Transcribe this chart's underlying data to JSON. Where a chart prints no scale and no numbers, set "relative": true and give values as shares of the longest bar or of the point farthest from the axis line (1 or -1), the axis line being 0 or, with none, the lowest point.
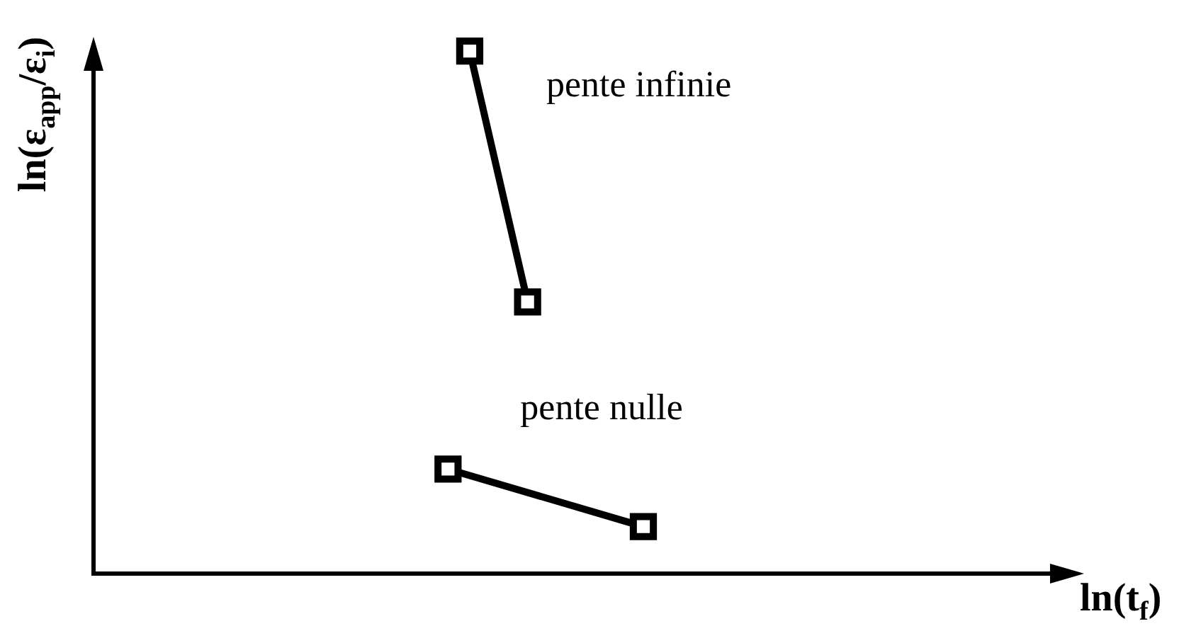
{
  "chart_data": {
    "type": "line",
    "xlabel": "ln(t$_{f}$)",
    "ylabel": "ln(ε$_{app}$/ε$_{i}$)",
    "relative": true,
    "marker": "square",
    "line_style": "solid",
    "categories": [
      null,
      null,
      null,
      null,
      null,
      null,
      null,
      null,
      null,
      null,
      null,
      null,
      null,
      null,
      null,
      null,
      null,
      null,
      null,
      null,
      null,
      null,
      null,
      null,
      null,
      null,
      null,
      null,
      null,
      null,
      null,
      null,
      null,
      null,
      null,
      null,
      null,
      null,
      null,
      null,
      null,
      null,
      null,
      null,
      null,
      null,
      null,
      null,
      null,
      null,
      null,
      null,
      null,
      null,
      null,
      null,
      null,
      null,
      null,
      null,
      null,
      null,
      null,
      null,
      null,
      null,
      null,
      null,
      null,
      null,
      null,
      null,
      null,
      null,
      null,
      null,
      null,
      null,
      null,
      null,
      null,
      null,
      null,
      null,
      null,
      null,
      null,
      null,
      null,
      null,
      null,
      null,
      null,
      null,
      null,
      null,
      null,
      null,
      null,
      null,
      null,
      null,
      null,
      null,
      null,
      null,
      null,
      null,
      null,
      null,
      null,
      null,
      null,
      null,
      null,
      null,
      null,
      null,
      null,
      null,
      null,
      null,
      null,
      null,
      null,
      null,
      null,
      null,
      null,
      null,
      null,
      null,
      null,
      null
    ],
    "series": [
      {
        "name": "pente infinie",
        "color": "#000000",
        "values": [
          null,
          null,
          null,
          null,
          null,
          null,
          null,
          null,
          null,
          null,
          null,
          null,
          null,
          null,
          null,
          null,
          null,
          null,
          null,
          null,
          null,
          null,
          null,
          null,
          null,
          null,
          null,
          null,
          null,
          null,
          null,
          null,
          null,
          null,
          null,
          null,
          null,
          null,
          null,
          null,
          null,
          null,
          null,
          null,
          null,
          null,
          null,
          null,
          null,
          null,
          null,
          null,
          1,
          null,
          null,
          null,
          null,
          null,
          null,
          null,
          0.52,
          null,
          null,
          null,
          null,
          null,
          null,
          null,
          null,
          null,
          null,
          null,
          null,
          null,
          null,
          null,
          null,
          null,
          null,
          null,
          null,
          null,
          null,
          null,
          null,
          null,
          null,
          null,
          null,
          null,
          null,
          null,
          null,
          null,
          null,
          null,
          null,
          null,
          null,
          null,
          null,
          null,
          null,
          null,
          null,
          null,
          null,
          null,
          null,
          null,
          null,
          null,
          null,
          null,
          null,
          null,
          null,
          null,
          null,
          null,
          null,
          null,
          null,
          null,
          null,
          null,
          null,
          null,
          null,
          null,
          null,
          null,
          null,
          null
        ]
      },
      {
        "name": "pente nulle",
        "color": "#000000",
        "values": [
          null,
          null,
          null,
          null,
          null,
          null,
          null,
          null,
          null,
          null,
          null,
          null,
          null,
          null,
          null,
          null,
          null,
          null,
          null,
          null,
          null,
          null,
          null,
          null,
          null,
          null,
          null,
          null,
          null,
          null,
          null,
          null,
          null,
          null,
          null,
          null,
          null,
          null,
          null,
          null,
          null,
          null,
          null,
          null,
          null,
          null,
          null,
          null,
          null,
          0.2,
          null,
          null,
          null,
          null,
          null,
          null,
          null,
          null,
          null,
          null,
          null,
          null,
          null,
          null,
          null,
          null,
          null,
          null,
          null,
          null,
          null,
          null,
          null,
          null,
          null,
          null,
          0.09,
          null,
          null,
          null,
          null,
          null,
          null,
          null,
          null,
          null,
          null,
          null,
          null,
          null,
          null,
          null,
          null,
          null,
          null,
          null,
          null,
          null,
          null,
          null,
          null,
          null,
          null,
          null,
          null,
          null,
          null,
          null,
          null,
          null,
          null,
          null,
          null,
          null,
          null,
          null,
          null,
          null,
          null,
          null,
          null,
          null,
          null,
          null,
          null,
          null,
          null,
          null,
          null,
          null,
          null,
          null,
          null,
          null
        ]
      }
    ]
  }
}
